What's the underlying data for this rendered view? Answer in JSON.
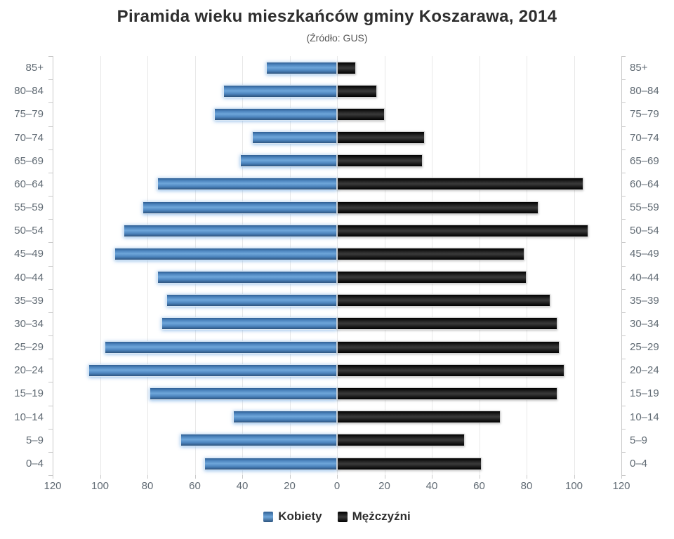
{
  "title": "Piramida wieku mieszkańców gminy Koszarawa, 2014",
  "subtitle": "(Źródło: GUS)",
  "legend": {
    "women": "Kobiety",
    "men": "Mężczyźni"
  },
  "axis": {
    "step": 20,
    "tick_labels": [
      "120",
      "100",
      "80",
      "60",
      "40",
      "20",
      "0",
      "20",
      "40",
      "60",
      "80",
      "100",
      "120"
    ]
  },
  "colors": {
    "women_bar": "#4e86c0",
    "men_bar": "#1c1c1c",
    "grid": "#e8e8e8",
    "axis_line": "#c9c9c9",
    "tick_label": "#616b74",
    "title_text": "#2e2e2e"
  },
  "chart_data": {
    "type": "bar",
    "variant": "population-pyramid",
    "title": "Piramida wieku mieszkańców gminy Koszarawa, 2014",
    "subtitle": "(Źródło: GUS)",
    "categories": [
      "85+",
      "80–84",
      "75–79",
      "70–74",
      "65–69",
      "60–64",
      "55–59",
      "50–54",
      "45–49",
      "40–44",
      "35–39",
      "30–34",
      "25–29",
      "20–24",
      "15–19",
      "10–14",
      "5–9",
      "0–4"
    ],
    "series": [
      {
        "name": "Kobiety",
        "side": "left",
        "values": [
          30,
          48,
          52,
          36,
          41,
          76,
          82,
          90,
          94,
          76,
          72,
          74,
          98,
          105,
          79,
          44,
          66,
          56
        ]
      },
      {
        "name": "Mężczyźni",
        "side": "right",
        "values": [
          8,
          17,
          20,
          37,
          36,
          104,
          85,
          106,
          79,
          80,
          90,
          93,
          94,
          96,
          93,
          69,
          54,
          61
        ]
      }
    ],
    "xlim": [
      -120,
      120
    ],
    "x_tick_step": 20,
    "grid": true,
    "legend_position": "bottom"
  }
}
